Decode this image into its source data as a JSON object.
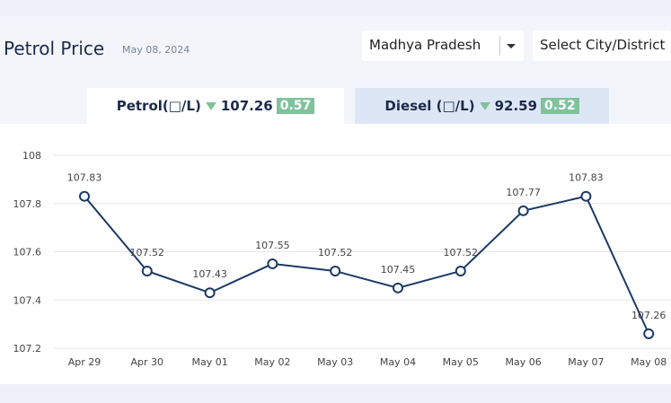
{
  "header": {
    "title": "Petrol Price",
    "date": "May 08, 2024",
    "state_select": "Madhya Pradesh",
    "city_select": "Select City/District"
  },
  "tabs": [
    {
      "label": "Petrol(□/L)",
      "price": 107.26,
      "change": 0.57
    },
    {
      "label": "Diesel (□/L)",
      "price": 92.59,
      "change": 0.52
    }
  ],
  "chart_data": {
    "type": "line",
    "categories": [
      "Apr 29",
      "Apr 30",
      "May 01",
      "May 02",
      "May 03",
      "May 04",
      "May 05",
      "May 06",
      "May 07",
      "May 08"
    ],
    "values": [
      107.83,
      107.52,
      107.43,
      107.55,
      107.52,
      107.45,
      107.52,
      107.77,
      107.83,
      107.26
    ],
    "color": "#1b3a66",
    "ylim": [
      107.2,
      108
    ],
    "yticks": [
      107.2,
      107.4,
      107.6,
      107.8,
      108
    ],
    "grid": true
  }
}
